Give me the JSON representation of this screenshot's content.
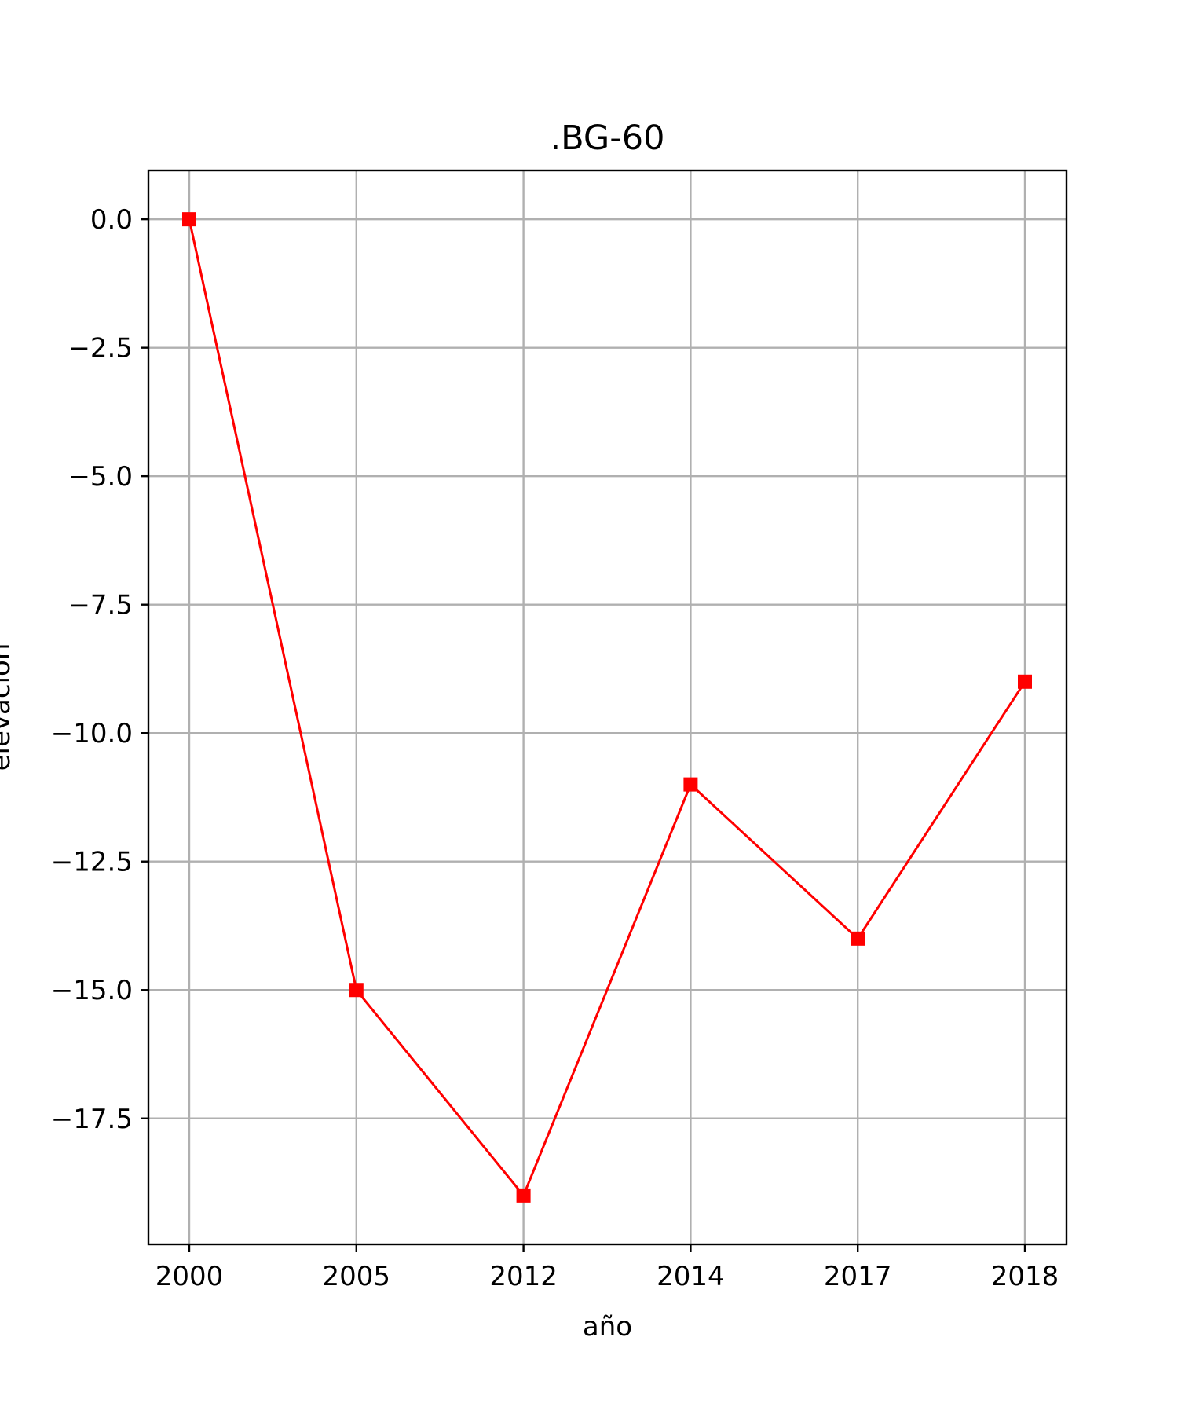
{
  "chart_data": {
    "type": "line",
    "title": ".BG-60",
    "xlabel": "año",
    "ylabel": "elevación",
    "categories": [
      "2000",
      "2005",
      "2012",
      "2014",
      "2017",
      "2018"
    ],
    "series": [
      {
        "values": [
          0.0,
          -15.0,
          -19.0,
          -11.0,
          -14.0,
          -9.0
        ],
        "color": "#ff0000",
        "marker": "square"
      }
    ],
    "yticks": [
      0.0,
      -2.5,
      -5.0,
      -7.5,
      -10.0,
      -12.5,
      -15.0,
      -17.5
    ],
    "ylim": [
      -19.95,
      0.95
    ],
    "grid": true
  }
}
